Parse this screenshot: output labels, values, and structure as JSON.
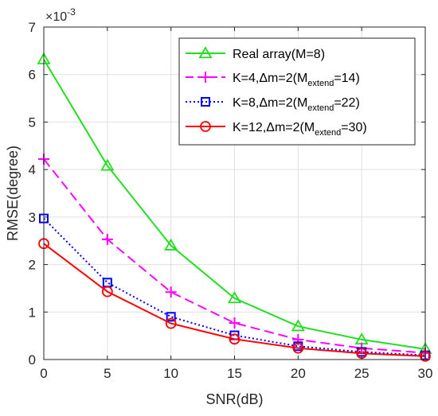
{
  "chart_data": {
    "type": "line",
    "title": "",
    "xlabel": "SNR(dB)",
    "ylabel": "RMSE(degree)",
    "y_multiplier_base": "×10",
    "y_multiplier_exponent": "-3",
    "xlim": [
      0,
      30
    ],
    "ylim": [
      0,
      7
    ],
    "x_ticks": [
      "0",
      "5",
      "10",
      "15",
      "20",
      "25",
      "30"
    ],
    "y_ticks": [
      "0",
      "1",
      "2",
      "3",
      "4",
      "5",
      "6",
      "7"
    ],
    "grid": true,
    "legend_position": "top-right",
    "x": [
      0,
      5,
      10,
      15,
      20,
      25,
      30
    ],
    "series": [
      {
        "legend_main": "Real array(M=8)",
        "legend_sub": "",
        "legend_tail": "",
        "color": "#22dd22",
        "marker": "triangle",
        "line_style": "solid",
        "values": [
          6.32,
          4.08,
          2.4,
          1.29,
          0.7,
          0.42,
          0.22
        ]
      },
      {
        "legend_main": "K=4,Δm=2(M",
        "legend_sub": "extend",
        "legend_tail": "=14)",
        "color": "#ff00ff",
        "marker": "plus",
        "line_style": "dashed",
        "values": [
          4.22,
          2.53,
          1.42,
          0.77,
          0.42,
          0.24,
          0.14
        ]
      },
      {
        "legend_main": "K=8,Δm=2(M",
        "legend_sub": "extend",
        "legend_tail": "=22)",
        "color": "#0000ff",
        "marker": "square",
        "line_style": "dotted",
        "values": [
          2.97,
          1.62,
          0.9,
          0.51,
          0.28,
          0.16,
          0.09
        ]
      },
      {
        "legend_main": "K=12,Δm=2(M",
        "legend_sub": "extend",
        "legend_tail": "=30)",
        "color": "#ff0000",
        "marker": "circle",
        "line_style": "solid",
        "values": [
          2.44,
          1.43,
          0.76,
          0.43,
          0.24,
          0.13,
          0.07
        ]
      }
    ]
  }
}
